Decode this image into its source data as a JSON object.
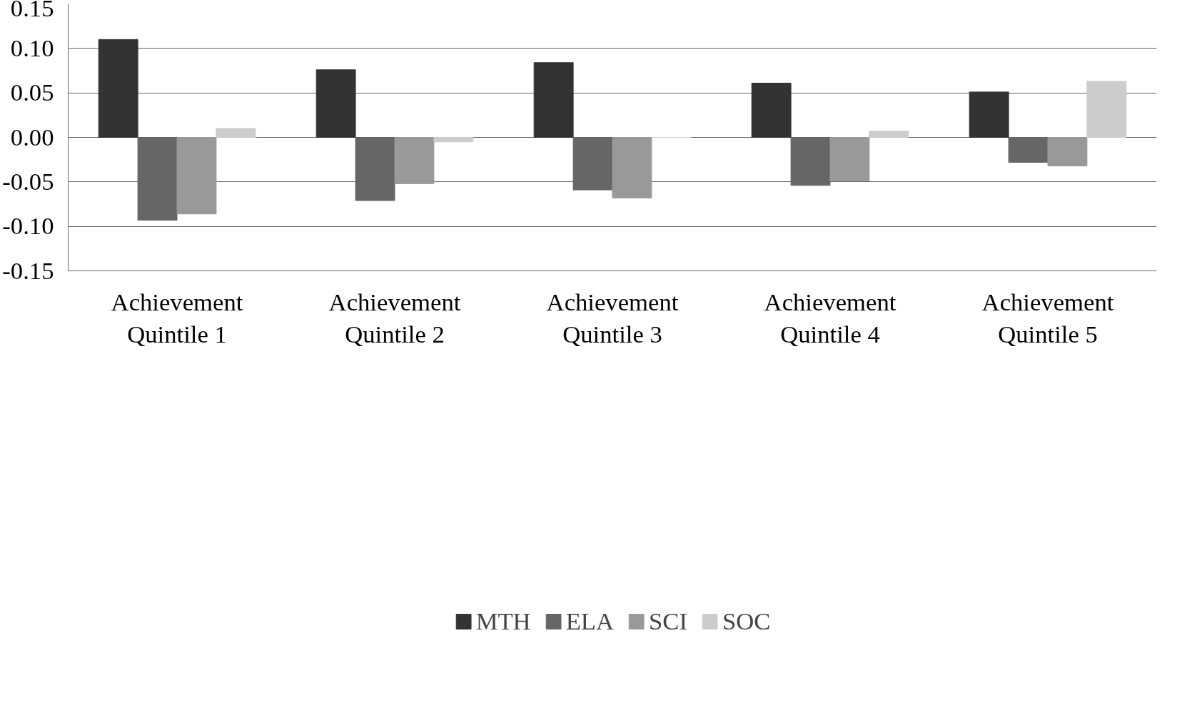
{
  "chart_data": {
    "type": "bar",
    "categories": [
      "Achievement\nQuintile 1",
      "Achievement\nQuintile 2",
      "Achievement\nQuintile 3",
      "Achievement\nQuintile 4",
      "Achievement\nQuintile 5"
    ],
    "series": [
      {
        "name": "MTH",
        "color": "#333333",
        "values": [
          0.11,
          0.076,
          0.084,
          0.061,
          0.051
        ]
      },
      {
        "name": "ELA",
        "color": "#666666",
        "values": [
          -0.093,
          -0.071,
          -0.059,
          -0.054,
          -0.028
        ]
      },
      {
        "name": "SCI",
        "color": "#999999",
        "values": [
          -0.086,
          -0.052,
          -0.068,
          -0.049,
          -0.032
        ]
      },
      {
        "name": "SOC",
        "color": "#cccccc",
        "values": [
          0.01,
          -0.005,
          0.0,
          0.007,
          0.063
        ]
      }
    ],
    "ylim": [
      -0.15,
      0.15
    ],
    "yticks": [
      0.15,
      {
        "value": 0.1,
        "label": "0.10"
      },
      0.05,
      {
        "value": 0,
        "label": "0.00"
      },
      -0.05,
      {
        "value": -0.1,
        "label": "-0.10"
      },
      -0.15
    ],
    "grid": "y",
    "legend": "bottom"
  }
}
